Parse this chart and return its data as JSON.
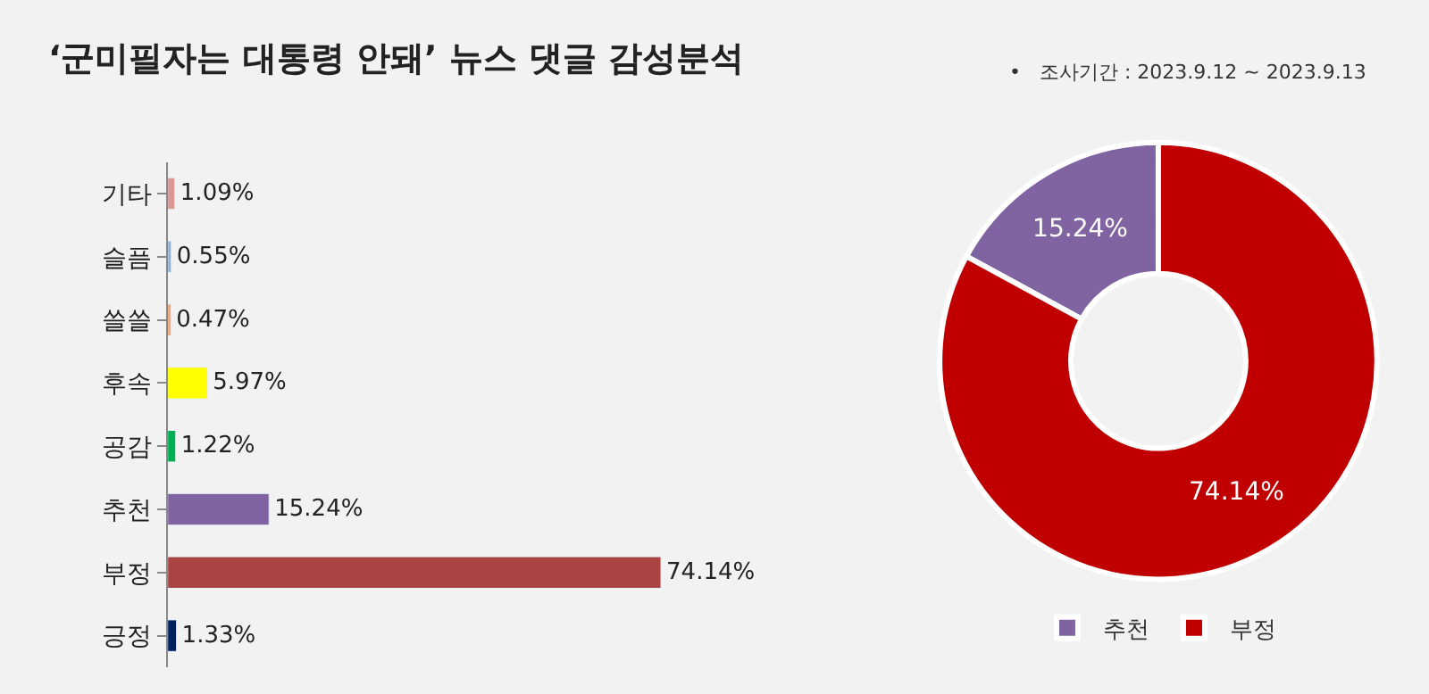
{
  "chart_data": [
    {
      "type": "bar",
      "orientation": "horizontal",
      "title": "‘군미필자는 대통령 안돼’ 뉴스 댓글 감성분석",
      "categories": [
        "기타",
        "슬픔",
        "쓸쓸",
        "후속",
        "공감",
        "추천",
        "부정",
        "긍정"
      ],
      "values": [
        1.09,
        0.55,
        0.47,
        5.97,
        1.22,
        15.24,
        74.14,
        1.33
      ],
      "value_labels": [
        "1.09%",
        "0.55%",
        "0.47%",
        "5.97%",
        "1.22%",
        "15.24%",
        "74.14%",
        "1.33%"
      ],
      "colors": [
        "#d99694",
        "#95b3d7",
        "#f0a070",
        "#ffff00",
        "#00b050",
        "#8064a2",
        "#a94442",
        "#002060"
      ],
      "tick_labels": "y",
      "grid": false,
      "legend": false
    },
    {
      "type": "donut",
      "subtitle": "•   조사기간 : 2023.9.12 ~ 2023.9.13",
      "categories": [
        "추천",
        "부정"
      ],
      "values": [
        15.24,
        74.14
      ],
      "colors": [
        "#8064a2",
        "#c00000"
      ],
      "value_labels": [
        "15.24%",
        "74.14%"
      ],
      "legend": "bottom"
    }
  ]
}
